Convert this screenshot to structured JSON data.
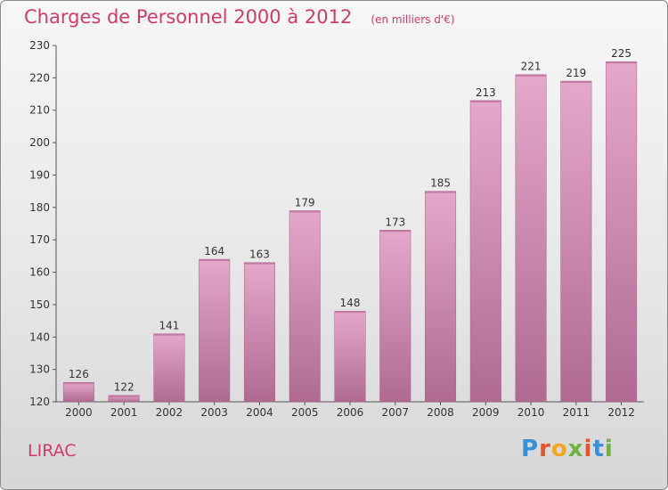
{
  "header": {
    "title": "Charges de Personnel 2000 à 2012",
    "subtitle": "(en milliers d'€)"
  },
  "footer": {
    "place": "LIRAC",
    "brand": "Proxiti",
    "brand_colors": [
      "#3a8fd6",
      "#e8542a",
      "#f2a51e",
      "#6cb33f",
      "#e8542a",
      "#3a8fd6",
      "#6cb33f"
    ]
  },
  "colors": {
    "bar_top": "#e4a8ca",
    "bar_bottom": "#b06a92",
    "title": "#d03b6b"
  },
  "chart_data": {
    "type": "bar",
    "title": "Charges de Personnel 2000 à 2012",
    "subtitle": "(en milliers d'€)",
    "categories": [
      "2000",
      "2001",
      "2002",
      "2003",
      "2004",
      "2005",
      "2006",
      "2007",
      "2008",
      "2009",
      "2010",
      "2011",
      "2012"
    ],
    "values": [
      126,
      122,
      141,
      164,
      163,
      179,
      148,
      173,
      185,
      213,
      221,
      219,
      225
    ],
    "ylim": [
      120,
      230
    ],
    "yticks": [
      120,
      130,
      140,
      150,
      160,
      170,
      180,
      190,
      200,
      210,
      220,
      230
    ],
    "grid": false,
    "data_labels": true
  }
}
